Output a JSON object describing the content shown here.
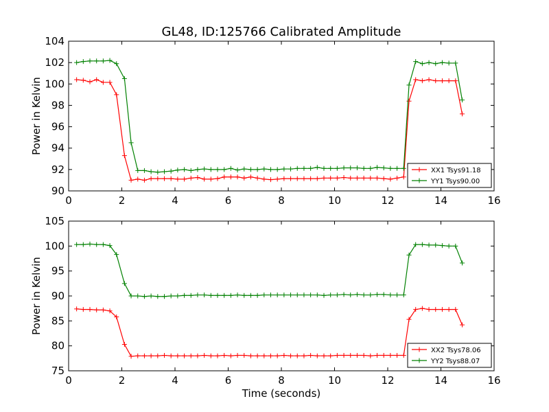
{
  "title": "GL48, ID:125766 Calibrated Amplitude",
  "xlabel": "Time (seconds)",
  "chart_data": [
    {
      "type": "line",
      "ylabel": "Power in Kelvin",
      "xlim": [
        0,
        16
      ],
      "ylim": [
        90,
        104
      ],
      "xticks": [
        "0",
        "2",
        "4",
        "6",
        "8",
        "10",
        "12",
        "14",
        "16"
      ],
      "yticks": [
        "90",
        "92",
        "94",
        "96",
        "98",
        "100",
        "102",
        "104"
      ],
      "legend_position": "lower-right",
      "x": [
        0.3,
        0.55,
        0.8,
        1.05,
        1.3,
        1.55,
        1.8,
        2.1,
        2.35,
        2.6,
        2.85,
        3.1,
        3.35,
        3.6,
        3.85,
        4.1,
        4.35,
        4.6,
        4.85,
        5.1,
        5.35,
        5.6,
        5.85,
        6.1,
        6.35,
        6.6,
        6.85,
        7.1,
        7.35,
        7.6,
        7.85,
        8.1,
        8.35,
        8.6,
        8.85,
        9.1,
        9.35,
        9.6,
        9.85,
        10.1,
        10.35,
        10.6,
        10.85,
        11.1,
        11.35,
        11.6,
        11.85,
        12.1,
        12.35,
        12.6,
        12.8,
        13.05,
        13.3,
        13.55,
        13.8,
        14.05,
        14.3,
        14.55,
        14.8
      ],
      "series": [
        {
          "name": "XX1 Tsys91.18",
          "color": "#ff0000",
          "values": [
            100.4,
            100.35,
            100.2,
            100.4,
            100.15,
            100.15,
            99.0,
            93.3,
            91.0,
            91.1,
            91.0,
            91.15,
            91.15,
            91.15,
            91.15,
            91.1,
            91.1,
            91.2,
            91.25,
            91.1,
            91.1,
            91.15,
            91.3,
            91.3,
            91.3,
            91.2,
            91.3,
            91.2,
            91.1,
            91.05,
            91.1,
            91.15,
            91.15,
            91.15,
            91.15,
            91.15,
            91.15,
            91.2,
            91.2,
            91.2,
            91.25,
            91.2,
            91.2,
            91.2,
            91.2,
            91.2,
            91.15,
            91.1,
            91.2,
            91.3,
            98.4,
            100.4,
            100.3,
            100.4,
            100.3,
            100.3,
            100.3,
            100.3,
            97.2
          ]
        },
        {
          "name": "YY1 Tsys90.00",
          "color": "#008000",
          "values": [
            102.0,
            102.1,
            102.15,
            102.15,
            102.15,
            102.2,
            101.9,
            100.5,
            94.5,
            91.9,
            91.9,
            91.8,
            91.75,
            91.8,
            91.85,
            91.95,
            92.0,
            91.9,
            92.0,
            92.05,
            92.0,
            92.0,
            92.0,
            92.1,
            91.95,
            92.05,
            92.0,
            92.0,
            92.05,
            92.0,
            92.0,
            92.05,
            92.05,
            92.1,
            92.1,
            92.1,
            92.2,
            92.1,
            92.1,
            92.1,
            92.15,
            92.15,
            92.15,
            92.1,
            92.1,
            92.2,
            92.15,
            92.1,
            92.1,
            92.1,
            99.9,
            102.1,
            101.9,
            102.0,
            101.9,
            102.0,
            101.95,
            101.95,
            98.5
          ]
        }
      ]
    },
    {
      "type": "line",
      "ylabel": "Power in Kelvin",
      "xlim": [
        0,
        16
      ],
      "ylim": [
        75,
        105
      ],
      "xticks": [
        "0",
        "2",
        "4",
        "6",
        "8",
        "10",
        "12",
        "14",
        "16"
      ],
      "yticks": [
        "75",
        "80",
        "85",
        "90",
        "95",
        "100",
        "105"
      ],
      "legend_position": "lower-right",
      "x": [
        0.3,
        0.55,
        0.8,
        1.05,
        1.3,
        1.55,
        1.8,
        2.1,
        2.35,
        2.6,
        2.85,
        3.1,
        3.35,
        3.6,
        3.85,
        4.1,
        4.35,
        4.6,
        4.85,
        5.1,
        5.35,
        5.6,
        5.85,
        6.1,
        6.35,
        6.6,
        6.85,
        7.1,
        7.35,
        7.6,
        7.85,
        8.1,
        8.35,
        8.6,
        8.85,
        9.1,
        9.35,
        9.6,
        9.85,
        10.1,
        10.35,
        10.6,
        10.85,
        11.1,
        11.35,
        11.6,
        11.85,
        12.1,
        12.35,
        12.6,
        12.8,
        13.05,
        13.3,
        13.55,
        13.8,
        14.05,
        14.3,
        14.55,
        14.8
      ],
      "series": [
        {
          "name": "XX2 Tsys78.06",
          "color": "#ff0000",
          "values": [
            87.4,
            87.3,
            87.3,
            87.2,
            87.2,
            87.0,
            85.8,
            80.3,
            77.9,
            78.0,
            78.0,
            78.0,
            78.0,
            78.1,
            78.0,
            78.0,
            78.0,
            78.0,
            78.0,
            78.1,
            78.0,
            78.0,
            78.1,
            78.0,
            78.1,
            78.1,
            78.0,
            78.0,
            78.0,
            78.0,
            78.0,
            78.1,
            78.0,
            78.0,
            78.0,
            78.1,
            78.0,
            78.0,
            78.0,
            78.1,
            78.1,
            78.1,
            78.1,
            78.1,
            78.0,
            78.1,
            78.1,
            78.1,
            78.1,
            78.1,
            85.3,
            87.3,
            87.5,
            87.3,
            87.3,
            87.3,
            87.3,
            87.3,
            84.2
          ]
        },
        {
          "name": "YY2 Tsys88.07",
          "color": "#008000",
          "values": [
            100.3,
            100.3,
            100.4,
            100.3,
            100.3,
            100.1,
            98.3,
            92.5,
            90.0,
            90.0,
            89.9,
            90.0,
            89.9,
            89.9,
            90.0,
            90.0,
            90.1,
            90.1,
            90.2,
            90.2,
            90.1,
            90.1,
            90.1,
            90.1,
            90.2,
            90.1,
            90.1,
            90.1,
            90.2,
            90.2,
            90.2,
            90.2,
            90.2,
            90.2,
            90.2,
            90.2,
            90.2,
            90.1,
            90.2,
            90.2,
            90.3,
            90.2,
            90.3,
            90.2,
            90.2,
            90.3,
            90.3,
            90.2,
            90.2,
            90.2,
            98.2,
            100.3,
            100.3,
            100.2,
            100.2,
            100.1,
            100.0,
            100.0,
            96.6
          ]
        }
      ]
    }
  ]
}
